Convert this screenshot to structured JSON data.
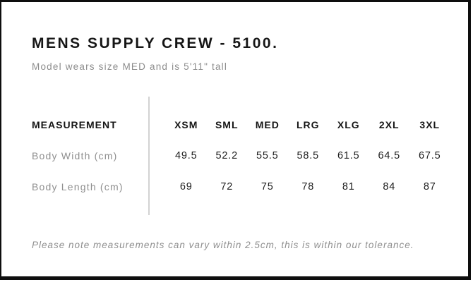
{
  "page": {
    "title": "MENS SUPPLY CREW - 5100.",
    "subtitle": "Model wears size MED and is 5'11\" tall",
    "footnote": "Please note measurements can vary within 2.5cm, this is within our tolerance."
  },
  "size_chart": {
    "header_label": "MEASUREMENT",
    "sizes": [
      "XSM",
      "SML",
      "MED",
      "LRG",
      "XLG",
      "2XL",
      "3XL"
    ],
    "rows": [
      {
        "label": "Body Width (cm)",
        "values": [
          "49.5",
          "52.2",
          "55.5",
          "58.5",
          "61.5",
          "64.5",
          "67.5"
        ]
      },
      {
        "label": "Body Length (cm)",
        "values": [
          "69",
          "72",
          "75",
          "78",
          "81",
          "84",
          "87"
        ]
      }
    ]
  },
  "chart_data": {
    "type": "table",
    "title": "MENS SUPPLY CREW - 5100.",
    "subtitle": "Model wears size MED and is 5'11\" tall",
    "columns": [
      "MEASUREMENT",
      "XSM",
      "SML",
      "MED",
      "LRG",
      "XLG",
      "2XL",
      "3XL"
    ],
    "rows": [
      [
        "Body Width (cm)",
        49.5,
        52.2,
        55.5,
        58.5,
        61.5,
        64.5,
        67.5
      ],
      [
        "Body Length (cm)",
        69,
        72,
        75,
        78,
        81,
        84,
        87
      ]
    ],
    "notes": "Please note measurements can vary within 2.5cm, this is within our tolerance."
  },
  "colors": {
    "frame": "#0e0e0e",
    "heading": "#161616",
    "value_text": "#1d1d1d",
    "muted_text": "#8c8c8c",
    "divider": "#d2d2d2",
    "background": "#ffffff"
  }
}
